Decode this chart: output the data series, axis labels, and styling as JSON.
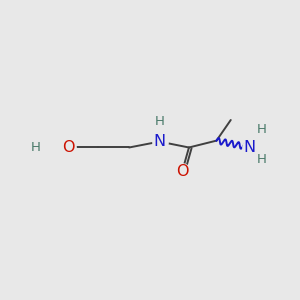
{
  "background_color": "#e8e8e8",
  "bond_color": "#404040",
  "atom_colors": {
    "H_hetero": "#4a7a6a",
    "O": "#cc1100",
    "N": "#1a1acc",
    "N2": "#1a1acc"
  },
  "font_size_atom": 11.5,
  "font_size_H": 9.5,
  "figsize": [
    3.0,
    3.0
  ],
  "dpi": 100,
  "xlim": [
    0,
    10
  ],
  "ylim": [
    0,
    10
  ]
}
